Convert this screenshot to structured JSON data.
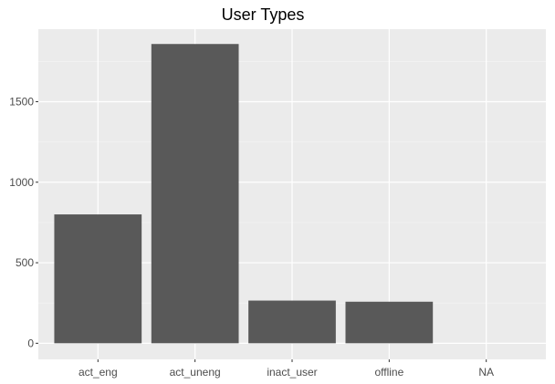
{
  "chart_data": {
    "type": "bar",
    "title": "User Types",
    "xlabel": "",
    "ylabel": "",
    "categories": [
      "act_eng",
      "act_uneng",
      "inact_user",
      "offline",
      "NA"
    ],
    "values": [
      800,
      1858,
      265,
      258,
      0
    ],
    "ylim": [
      -100,
      1950
    ],
    "yticks": [
      0,
      500,
      1000,
      1500
    ],
    "grid": true,
    "legend": "none",
    "colors": {
      "bar": "#595959",
      "panel_background": "#ebebeb",
      "grid_major": "#ffffff",
      "grid_minor": "#f5f5f5",
      "tick_text": "#4d4d4d",
      "tick_mark": "#333333",
      "title": "#000000"
    }
  }
}
